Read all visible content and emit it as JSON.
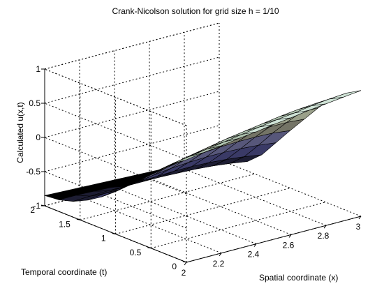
{
  "chart_data": {
    "type": "surface",
    "title": "Crank-Nicolson solution for grid size h = 1/10",
    "xlabel": "Spatial coordinate (x)",
    "ylabel": "Temporal coordinate (t)",
    "zlabel": "Calculated u(x,t)",
    "xlim": [
      2,
      3
    ],
    "ylim": [
      0,
      2
    ],
    "zlim": [
      -1,
      1
    ],
    "x_ticks": [
      "2",
      "2.2",
      "2.4",
      "2.6",
      "2.8",
      "3"
    ],
    "y_ticks": [
      "0",
      "0.5",
      "1",
      "1.5",
      "2"
    ],
    "z_ticks": [
      "-1",
      "-0.5",
      "0",
      "0.5",
      "1"
    ],
    "grid": true,
    "grid_size": 0.1,
    "x": [
      2.0,
      2.1,
      2.2,
      2.3,
      2.4,
      2.5,
      2.6,
      2.7,
      2.8,
      2.9,
      3.0
    ],
    "y": [
      0.0,
      0.2,
      0.4,
      0.6,
      0.8,
      1.0,
      1.2,
      1.4,
      1.6,
      1.8,
      2.0
    ],
    "z": [
      [
        0.5,
        0.54,
        0.57,
        0.61,
        0.64,
        0.68,
        0.71,
        0.75,
        0.78,
        0.81,
        0.84
      ],
      [
        0.36,
        0.4,
        0.44,
        0.48,
        0.52,
        0.56,
        0.6,
        0.63,
        0.67,
        0.7,
        0.72
      ],
      [
        0.18,
        0.23,
        0.28,
        0.33,
        0.38,
        0.42,
        0.46,
        0.5,
        0.53,
        0.55,
        0.56
      ],
      [
        -0.01,
        0.05,
        0.1,
        0.15,
        0.2,
        0.24,
        0.28,
        0.31,
        0.33,
        0.34,
        0.34
      ],
      [
        -0.2,
        -0.14,
        -0.08,
        -0.03,
        0.01,
        0.05,
        0.08,
        0.1,
        0.11,
        0.11,
        0.09
      ],
      [
        -0.38,
        -0.32,
        -0.27,
        -0.22,
        -0.18,
        -0.15,
        -0.13,
        -0.12,
        -0.12,
        -0.13,
        -0.16
      ],
      [
        -0.54,
        -0.5,
        -0.46,
        -0.42,
        -0.39,
        -0.37,
        -0.36,
        -0.36,
        -0.37,
        -0.39,
        -0.42
      ],
      [
        -0.67,
        -0.64,
        -0.62,
        -0.6,
        -0.59,
        -0.58,
        -0.58,
        -0.59,
        -0.61,
        -0.64,
        -0.68
      ],
      [
        -0.77,
        -0.76,
        -0.75,
        -0.75,
        -0.75,
        -0.75,
        -0.76,
        -0.77,
        -0.79,
        -0.82,
        -0.86
      ],
      [
        -0.83,
        -0.83,
        -0.84,
        -0.85,
        -0.86,
        -0.87,
        -0.88,
        -0.89,
        -0.91,
        -0.93,
        -0.96
      ],
      [
        -0.85,
        -0.86,
        -0.87,
        -0.88,
        -0.89,
        -0.9,
        -0.91,
        -0.92,
        -0.93,
        -0.94,
        -0.96
      ]
    ],
    "colormap": [
      "#000000",
      "#1d1d33",
      "#3a3a66",
      "#57577a",
      "#747466",
      "#8a8a5a",
      "#9aa08a",
      "#b0c4b0",
      "#cfe3d6",
      "#e6f2ee"
    ]
  }
}
